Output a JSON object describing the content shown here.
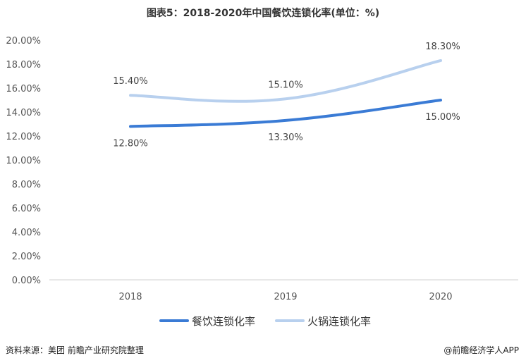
{
  "chart_data": {
    "type": "line",
    "title": "图表5：2018-2020年中国餐饮连锁化率(单位：%)",
    "x": [
      "2018",
      "2019",
      "2020"
    ],
    "ylim": [
      0,
      20
    ],
    "yticks": [
      "0.00%",
      "2.00%",
      "4.00%",
      "6.00%",
      "8.00%",
      "10.00%",
      "12.00%",
      "14.00%",
      "16.00%",
      "18.00%",
      "20.00%"
    ],
    "grid": false,
    "legend": "bottom",
    "series": [
      {
        "name": "餐饮连锁化率",
        "values": [
          12.8,
          13.3,
          15.0
        ],
        "labels": [
          "12.80%",
          "13.30%",
          "15.00%"
        ],
        "color": "#3a7bd5"
      },
      {
        "name": "火锅连锁化率",
        "values": [
          15.4,
          15.1,
          18.3
        ],
        "labels": [
          "15.40%",
          "15.10%",
          "18.30%"
        ],
        "color": "#b8d0ee"
      }
    ]
  },
  "footer": {
    "source": "资料来源：美团 前瞻产业研究院整理",
    "brand": "@前瞻经济学人APP"
  }
}
